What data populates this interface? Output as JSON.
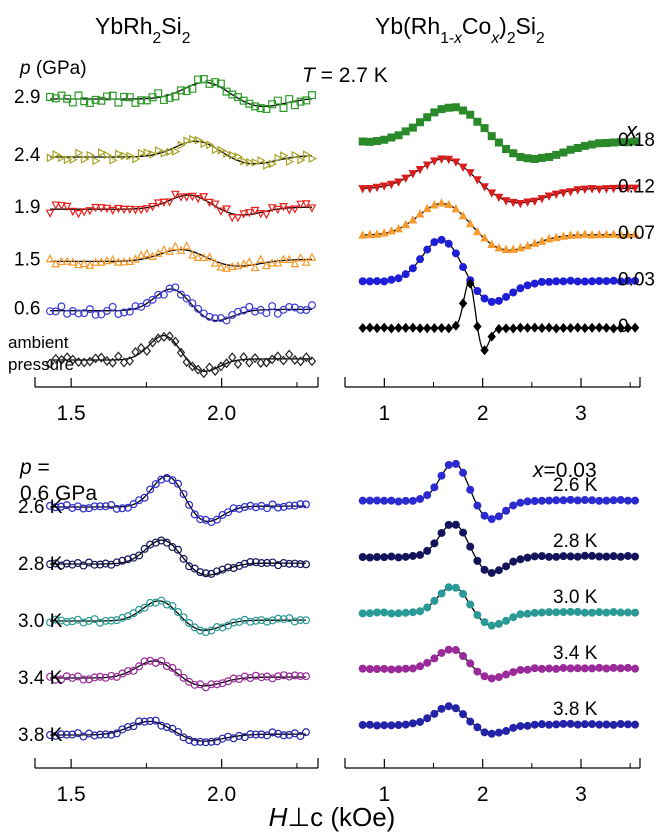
{
  "xlabel": "H⊥c (kOe)",
  "chart_data": [
    {
      "id": "TL",
      "type": "line",
      "title": "YbRh2Si2",
      "legend_title": "p (GPa)",
      "annotation": "T = 2.7 K",
      "xlim": [
        1.38,
        2.32
      ],
      "xticks": [
        "1.5",
        "2.0"
      ],
      "xtick_values": [
        1.5,
        2.0
      ],
      "series": [
        {
          "name": "2.9",
          "color": "#2f9b2b",
          "marker": "square-open",
          "base": 0.9,
          "amp": 0.42,
          "x0": 2.02,
          "width": 0.13,
          "slope": 0.05
        },
        {
          "name": "2.4",
          "color": "#a8a227",
          "marker": "triangle-right-open",
          "base": 0.7,
          "amp": 0.4,
          "x0": 1.99,
          "width": 0.13,
          "slope": 0.08
        },
        {
          "name": "1.9",
          "color": "#e8211f",
          "marker": "triangle-down-open",
          "base": 0.52,
          "amp": 0.36,
          "x0": 1.96,
          "width": 0.12,
          "slope": 0.1
        },
        {
          "name": "1.5",
          "color": "#f59a2c",
          "marker": "triangle-up-open",
          "base": 0.34,
          "amp": 0.3,
          "x0": 1.94,
          "width": 0.13,
          "slope": 0.1
        },
        {
          "name": "0.6",
          "color": "#3b3bd6",
          "marker": "circle-open",
          "base": 0.17,
          "amp": 0.55,
          "x0": 1.89,
          "width": 0.1,
          "slope": 0.06
        },
        {
          "name": "ambient pressure",
          "color": "#222222",
          "marker": "diamond-open",
          "base": 0.0,
          "amp": 0.62,
          "x0": 1.86,
          "width": 0.09,
          "slope": 0.05
        }
      ]
    },
    {
      "id": "TR",
      "type": "line",
      "title": "Yb(Rh1-xCox)2Si2",
      "legend_title": "x",
      "xlim": [
        0.6,
        3.6
      ],
      "xticks": [
        "1",
        "2",
        "3"
      ],
      "xtick_values": [
        1,
        2,
        3
      ],
      "series": [
        {
          "name": "0.18",
          "color": "#2a8a2a",
          "marker": "square",
          "base": 0.72,
          "amp": 1.0,
          "x0": 2.0,
          "width": 0.55,
          "slope": 0.02
        },
        {
          "name": "0.12",
          "color": "#d81c1c",
          "marker": "triangle-down",
          "base": 0.54,
          "amp": 0.85,
          "x0": 1.9,
          "width": 0.5,
          "slope": 0.02
        },
        {
          "name": "0.07",
          "color": "#f59a2c",
          "marker": "triangle-up",
          "base": 0.36,
          "amp": 0.9,
          "x0": 1.85,
          "width": 0.45,
          "slope": 0.02
        },
        {
          "name": "0.03",
          "color": "#1e1ed6",
          "marker": "circle",
          "base": 0.18,
          "amp": 1.2,
          "x0": 1.78,
          "width": 0.35,
          "slope": 0.02
        },
        {
          "name": "0",
          "color": "#000000",
          "marker": "diamond",
          "base": 0.0,
          "amp": 1.3,
          "x0": 1.92,
          "width": 0.1,
          "slope": 0.0
        }
      ]
    },
    {
      "id": "BL",
      "type": "line",
      "legend_title": "p = 0.6 GPa",
      "xlim": [
        1.38,
        2.32
      ],
      "xticks": [
        "1.5",
        "2.0"
      ],
      "xtick_values": [
        1.5,
        2.0
      ],
      "series": [
        {
          "name": "2.6 K",
          "color": "#2b2bd0",
          "marker": "circle-open",
          "base": 0.8,
          "amp": 0.8,
          "x0": 1.87,
          "width": 0.09,
          "slope": 0.04
        },
        {
          "name": "2.8 K",
          "color": "#14145c",
          "marker": "circle-open",
          "base": 0.6,
          "amp": 0.62,
          "x0": 1.86,
          "width": 0.1,
          "slope": 0.04
        },
        {
          "name": "3.0 K",
          "color": "#2a9a96",
          "marker": "circle-open",
          "base": 0.4,
          "amp": 0.52,
          "x0": 1.85,
          "width": 0.1,
          "slope": 0.04
        },
        {
          "name": "3.4 K",
          "color": "#9a2a9a",
          "marker": "circle-open",
          "base": 0.2,
          "amp": 0.44,
          "x0": 1.84,
          "width": 0.11,
          "slope": 0.04
        },
        {
          "name": "3.8 K",
          "color": "#2323a8",
          "marker": "circle-open",
          "base": 0.0,
          "amp": 0.35,
          "x0": 1.83,
          "width": 0.12,
          "slope": 0.04
        }
      ]
    },
    {
      "id": "BR",
      "type": "line",
      "legend_title": "x=0.03",
      "xlim": [
        0.6,
        3.6
      ],
      "xticks": [
        "1",
        "2",
        "3"
      ],
      "xtick_values": [
        1,
        2,
        3
      ],
      "series": [
        {
          "name": "2.6 K",
          "color": "#2b2bd0",
          "marker": "circle",
          "base": 0.8,
          "amp": 1.0,
          "x0": 1.85,
          "width": 0.25,
          "slope": 0.03
        },
        {
          "name": "2.8 K",
          "color": "#14145c",
          "marker": "circle",
          "base": 0.6,
          "amp": 0.88,
          "x0": 1.85,
          "width": 0.26,
          "slope": 0.03
        },
        {
          "name": "3.0 K",
          "color": "#2a9a96",
          "marker": "circle",
          "base": 0.4,
          "amp": 0.7,
          "x0": 1.85,
          "width": 0.27,
          "slope": 0.03
        },
        {
          "name": "3.4 K",
          "color": "#9a2a9a",
          "marker": "circle",
          "base": 0.2,
          "amp": 0.52,
          "x0": 1.84,
          "width": 0.28,
          "slope": 0.03
        },
        {
          "name": "3.8 K",
          "color": "#2323a8",
          "marker": "circle",
          "base": 0.0,
          "amp": 0.48,
          "x0": 1.83,
          "width": 0.29,
          "slope": 0.03
        }
      ]
    }
  ]
}
